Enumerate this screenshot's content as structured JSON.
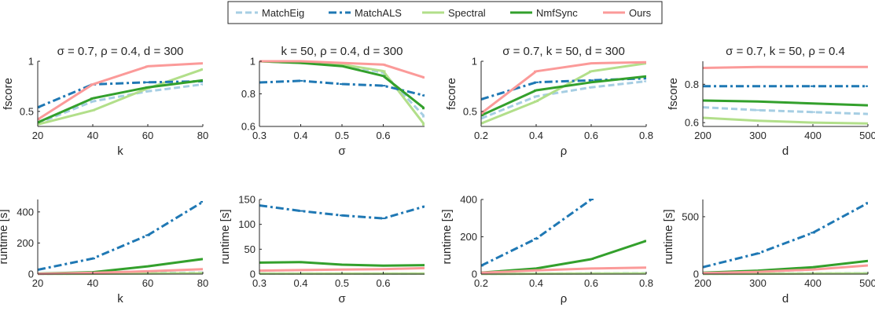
{
  "legend": [
    {
      "name": "MatchEig",
      "color": "#a6cee3",
      "dash": "8,4"
    },
    {
      "name": "MatchALS",
      "color": "#1f78b4",
      "dash": "10,4,3,4"
    },
    {
      "name": "Spectral",
      "color": "#b2df8a",
      "dash": ""
    },
    {
      "name": "NmfSync",
      "color": "#33a02c",
      "dash": ""
    },
    {
      "name": "Ours",
      "color": "#fb9a99",
      "dash": ""
    }
  ],
  "chart_data": [
    {
      "type": "line",
      "title": "σ = 0.7, ρ = 0.4, d = 300",
      "xlabel": "k",
      "ylabel": "fscore",
      "x": [
        20,
        40,
        60,
        80
      ],
      "xlim": [
        20,
        80
      ],
      "ylim": [
        0.35,
        1.0
      ],
      "xticks": [
        "20",
        "40",
        "60",
        "80"
      ],
      "xtick_values": [
        20,
        40,
        60,
        80
      ],
      "yticks": [
        "0.5",
        "1"
      ],
      "ytick_values": [
        0.5,
        1.0
      ],
      "grid": false,
      "series": [
        {
          "name": "MatchEig",
          "values": [
            0.38,
            0.6,
            0.7,
            0.77
          ]
        },
        {
          "name": "MatchALS",
          "values": [
            0.54,
            0.77,
            0.79,
            0.8
          ]
        },
        {
          "name": "Spectral",
          "values": [
            0.37,
            0.51,
            0.73,
            0.92
          ]
        },
        {
          "name": "NmfSync",
          "values": [
            0.39,
            0.63,
            0.74,
            0.81
          ]
        },
        {
          "name": "Ours",
          "values": [
            0.42,
            0.77,
            0.95,
            0.98
          ]
        }
      ]
    },
    {
      "type": "line",
      "title": "k = 50, ρ = 0.4, d = 300",
      "xlabel": "σ",
      "ylabel": "",
      "x": [
        0.3,
        0.4,
        0.5,
        0.6,
        0.7
      ],
      "xlim": [
        0.3,
        0.7
      ],
      "ylim": [
        0.6,
        1.0
      ],
      "xticks": [
        "0.3",
        "0.4",
        "0.5",
        "0.6"
      ],
      "xtick_values": [
        0.3,
        0.4,
        0.5,
        0.6
      ],
      "yticks": [
        "0.6",
        "0.8",
        "1"
      ],
      "ytick_values": [
        0.6,
        0.8,
        1.0
      ],
      "grid": false,
      "series": [
        {
          "name": "MatchEig",
          "values": [
            1.0,
            0.99,
            0.98,
            0.93,
            0.66
          ]
        },
        {
          "name": "MatchALS",
          "values": [
            0.87,
            0.88,
            0.86,
            0.85,
            0.79
          ]
        },
        {
          "name": "Spectral",
          "values": [
            1.0,
            0.99,
            0.98,
            0.94,
            0.61
          ]
        },
        {
          "name": "NmfSync",
          "values": [
            1.0,
            0.99,
            0.97,
            0.91,
            0.71
          ]
        },
        {
          "name": "Ours",
          "values": [
            1.0,
            1.0,
            0.99,
            0.98,
            0.9
          ]
        }
      ]
    },
    {
      "type": "line",
      "title": "σ = 0.7, k = 50, d = 300",
      "xlabel": "ρ",
      "ylabel": "fscore",
      "x": [
        0.2,
        0.4,
        0.6,
        0.8
      ],
      "xlim": [
        0.2,
        0.8
      ],
      "ylim": [
        0.35,
        1.0
      ],
      "xticks": [
        "0.2",
        "0.4",
        "0.6",
        "0.8"
      ],
      "xtick_values": [
        0.2,
        0.4,
        0.6,
        0.8
      ],
      "yticks": [
        "0.5",
        "1"
      ],
      "ytick_values": [
        0.5,
        1.0
      ],
      "grid": false,
      "series": [
        {
          "name": "MatchEig",
          "values": [
            0.43,
            0.65,
            0.74,
            0.8
          ]
        },
        {
          "name": "MatchALS",
          "values": [
            0.62,
            0.79,
            0.81,
            0.83
          ]
        },
        {
          "name": "Spectral",
          "values": [
            0.38,
            0.6,
            0.9,
            0.98
          ]
        },
        {
          "name": "NmfSync",
          "values": [
            0.46,
            0.71,
            0.79,
            0.85
          ]
        },
        {
          "name": "Ours",
          "values": [
            0.48,
            0.9,
            0.98,
            0.99
          ]
        }
      ]
    },
    {
      "type": "line",
      "title": "σ = 0.7, k = 50, ρ = 0.4",
      "xlabel": "d",
      "ylabel": "fscore",
      "x": [
        200,
        300,
        400,
        500
      ],
      "xlim": [
        200,
        500
      ],
      "ylim": [
        0.58,
        0.92
      ],
      "xticks": [
        "200",
        "300",
        "400",
        "500"
      ],
      "xtick_values": [
        200,
        300,
        400,
        500
      ],
      "yticks": [
        "0.6",
        "0.8"
      ],
      "ytick_values": [
        0.6,
        0.8
      ],
      "grid": false,
      "series": [
        {
          "name": "MatchEig",
          "values": [
            0.68,
            0.665,
            0.655,
            0.645
          ]
        },
        {
          "name": "MatchALS",
          "values": [
            0.79,
            0.79,
            0.79,
            0.79
          ]
        },
        {
          "name": "Spectral",
          "values": [
            0.625,
            0.61,
            0.6,
            0.595
          ]
        },
        {
          "name": "NmfSync",
          "values": [
            0.715,
            0.71,
            0.7,
            0.69
          ]
        },
        {
          "name": "Ours",
          "values": [
            0.885,
            0.89,
            0.89,
            0.89
          ]
        }
      ]
    },
    {
      "type": "line",
      "title": "",
      "xlabel": "k",
      "ylabel": "runtime [s]",
      "x": [
        20,
        40,
        60,
        80
      ],
      "xlim": [
        20,
        80
      ],
      "ylim": [
        0,
        480
      ],
      "xticks": [
        "20",
        "40",
        "60",
        "80"
      ],
      "xtick_values": [
        20,
        40,
        60,
        80
      ],
      "yticks": [
        "0",
        "200",
        "400"
      ],
      "ytick_values": [
        0,
        200,
        400
      ],
      "grid": false,
      "series": [
        {
          "name": "MatchEig",
          "values": [
            1,
            3,
            6,
            9
          ]
        },
        {
          "name": "MatchALS",
          "values": [
            28,
            100,
            250,
            465
          ]
        },
        {
          "name": "Spectral",
          "values": [
            1,
            2,
            4,
            6
          ]
        },
        {
          "name": "NmfSync",
          "values": [
            3,
            12,
            50,
            97
          ]
        },
        {
          "name": "Ours",
          "values": [
            2,
            8,
            18,
            32
          ]
        }
      ]
    },
    {
      "type": "line",
      "title": "",
      "xlabel": "σ",
      "ylabel": "runtime [s]",
      "x": [
        0.3,
        0.4,
        0.5,
        0.6,
        0.7
      ],
      "xlim": [
        0.3,
        0.7
      ],
      "ylim": [
        0,
        150
      ],
      "xticks": [
        "0.3",
        "0.4",
        "0.5",
        "0.6"
      ],
      "xtick_values": [
        0.3,
        0.4,
        0.5,
        0.6
      ],
      "yticks": [
        "0",
        "50",
        "100",
        "150"
      ],
      "ytick_values": [
        0,
        50,
        100,
        150
      ],
      "grid": false,
      "series": [
        {
          "name": "MatchEig",
          "values": [
            1,
            1,
            1,
            1,
            1
          ]
        },
        {
          "name": "MatchALS",
          "values": [
            138,
            127,
            118,
            112,
            136
          ]
        },
        {
          "name": "Spectral",
          "values": [
            1,
            1,
            1,
            1,
            1
          ]
        },
        {
          "name": "NmfSync",
          "values": [
            23,
            24,
            19,
            17,
            18
          ]
        },
        {
          "name": "Ours",
          "values": [
            7,
            8,
            9,
            10,
            12
          ]
        }
      ]
    },
    {
      "type": "line",
      "title": "",
      "xlabel": "ρ",
      "ylabel": "runtime [s]",
      "x": [
        0.2,
        0.4,
        0.6,
        0.8
      ],
      "xlim": [
        0.2,
        0.8
      ],
      "ylim": [
        0,
        400
      ],
      "xticks": [
        "0.2",
        "0.4",
        "0.6",
        "0.8"
      ],
      "xtick_values": [
        0.2,
        0.4,
        0.6,
        0.8
      ],
      "yticks": [
        "0",
        "200",
        "400"
      ],
      "ytick_values": [
        0,
        200,
        400
      ],
      "grid": false,
      "series": [
        {
          "name": "MatchEig",
          "values": [
            1,
            2,
            4,
            5
          ]
        },
        {
          "name": "MatchALS",
          "values": [
            45,
            190,
            400,
            null
          ]
        },
        {
          "name": "Spectral",
          "values": [
            1,
            2,
            3,
            4
          ]
        },
        {
          "name": "NmfSync",
          "values": [
            8,
            30,
            80,
            178
          ]
        },
        {
          "name": "Ours",
          "values": [
            7,
            20,
            30,
            35
          ]
        }
      ]
    },
    {
      "type": "line",
      "title": "",
      "xlabel": "d",
      "ylabel": "runtime [s]",
      "x": [
        200,
        300,
        400,
        500
      ],
      "xlim": [
        200,
        500
      ],
      "ylim": [
        0,
        650
      ],
      "xticks": [
        "200",
        "300",
        "400",
        "500"
      ],
      "xtick_values": [
        200,
        300,
        400,
        500
      ],
      "yticks": [
        "0",
        "500"
      ],
      "ytick_values": [
        0,
        500
      ],
      "grid": false,
      "series": [
        {
          "name": "MatchEig",
          "values": [
            2,
            4,
            6,
            8
          ]
        },
        {
          "name": "MatchALS",
          "values": [
            60,
            180,
            360,
            620
          ]
        },
        {
          "name": "Spectral",
          "values": [
            2,
            3,
            5,
            6
          ]
        },
        {
          "name": "NmfSync",
          "values": [
            12,
            30,
            60,
            115
          ]
        },
        {
          "name": "Ours",
          "values": [
            8,
            20,
            40,
            75
          ]
        }
      ]
    }
  ]
}
